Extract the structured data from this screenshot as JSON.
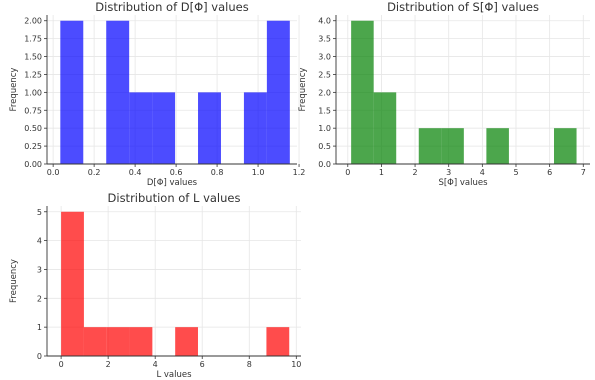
{
  "chart_data": [
    {
      "type": "bar",
      "title": "Distribution of D[Φ] values",
      "xlabel": "D[Φ] values",
      "ylabel": "Frequency",
      "xlim": [
        -0.03,
        1.19
      ],
      "ylim": [
        0,
        2.08
      ],
      "xticks": [
        "0.0",
        "0.2",
        "0.4",
        "0.6",
        "0.8",
        "1.0",
        "1.2"
      ],
      "xtick_values": [
        0,
        0.2,
        0.4,
        0.6,
        0.8,
        1.0,
        1.2
      ],
      "yticks": [
        "0.00",
        "0.25",
        "0.50",
        "0.75",
        "1.00",
        "1.25",
        "1.50",
        "1.75",
        "2.00"
      ],
      "ytick_values": [
        0,
        0.25,
        0.5,
        0.75,
        1.0,
        1.25,
        1.5,
        1.75,
        2.0
      ],
      "bins": [
        [
          0.035,
          0.147,
          2
        ],
        [
          0.147,
          0.259,
          0
        ],
        [
          0.259,
          0.371,
          2
        ],
        [
          0.371,
          0.483,
          1
        ],
        [
          0.483,
          0.595,
          1
        ],
        [
          0.595,
          0.707,
          0
        ],
        [
          0.707,
          0.819,
          1
        ],
        [
          0.819,
          0.931,
          0
        ],
        [
          0.931,
          1.043,
          1
        ],
        [
          1.043,
          1.155,
          2
        ]
      ],
      "color": "#0000ff",
      "grid": true
    },
    {
      "type": "bar",
      "title": "Distribution of S[Φ] values",
      "xlabel": "S[Φ] values",
      "ylabel": "Frequency",
      "xlim": [
        -0.35,
        7.2
      ],
      "ylim": [
        0,
        4.16
      ],
      "xticks": [
        "0",
        "1",
        "2",
        "3",
        "4",
        "5",
        "6",
        "7"
      ],
      "xtick_values": [
        0,
        1,
        2,
        3,
        4,
        5,
        6,
        7
      ],
      "yticks": [
        "0.0",
        "0.5",
        "1.0",
        "1.5",
        "2.0",
        "2.5",
        "3.0",
        "3.5",
        "4.0"
      ],
      "ytick_values": [
        0,
        0.5,
        1.0,
        1.5,
        2.0,
        2.5,
        3.0,
        3.5,
        4.0
      ],
      "bins": [
        [
          0.1,
          0.77,
          4
        ],
        [
          0.77,
          1.44,
          2
        ],
        [
          1.44,
          2.11,
          0
        ],
        [
          2.11,
          2.78,
          1
        ],
        [
          2.78,
          3.45,
          1
        ],
        [
          3.45,
          4.12,
          0
        ],
        [
          4.12,
          4.79,
          1
        ],
        [
          4.79,
          5.46,
          0
        ],
        [
          5.46,
          6.13,
          0
        ],
        [
          6.13,
          6.8,
          1
        ]
      ],
      "color": "#008000",
      "grid": true
    },
    {
      "type": "bar",
      "title": "Distribution of L values",
      "xlabel": "L values",
      "ylabel": "Frequency",
      "xlim": [
        -0.6,
        10.2
      ],
      "ylim": [
        0,
        5.2
      ],
      "xticks": [
        "0",
        "2",
        "4",
        "6",
        "8",
        "10"
      ],
      "xtick_values": [
        0,
        2,
        4,
        6,
        8,
        10
      ],
      "yticks": [
        "0",
        "1",
        "2",
        "3",
        "4",
        "5"
      ],
      "ytick_values": [
        0,
        1,
        2,
        3,
        4,
        5
      ],
      "bins": [
        [
          0,
          0.97,
          5
        ],
        [
          0.97,
          1.94,
          1
        ],
        [
          1.94,
          2.91,
          1
        ],
        [
          2.91,
          3.88,
          1
        ],
        [
          3.88,
          4.85,
          0
        ],
        [
          4.85,
          5.82,
          1
        ],
        [
          5.82,
          6.79,
          0
        ],
        [
          6.79,
          7.76,
          0
        ],
        [
          7.76,
          8.73,
          0
        ],
        [
          8.73,
          9.7,
          1
        ]
      ],
      "color": "#ff0000",
      "grid": true
    }
  ]
}
